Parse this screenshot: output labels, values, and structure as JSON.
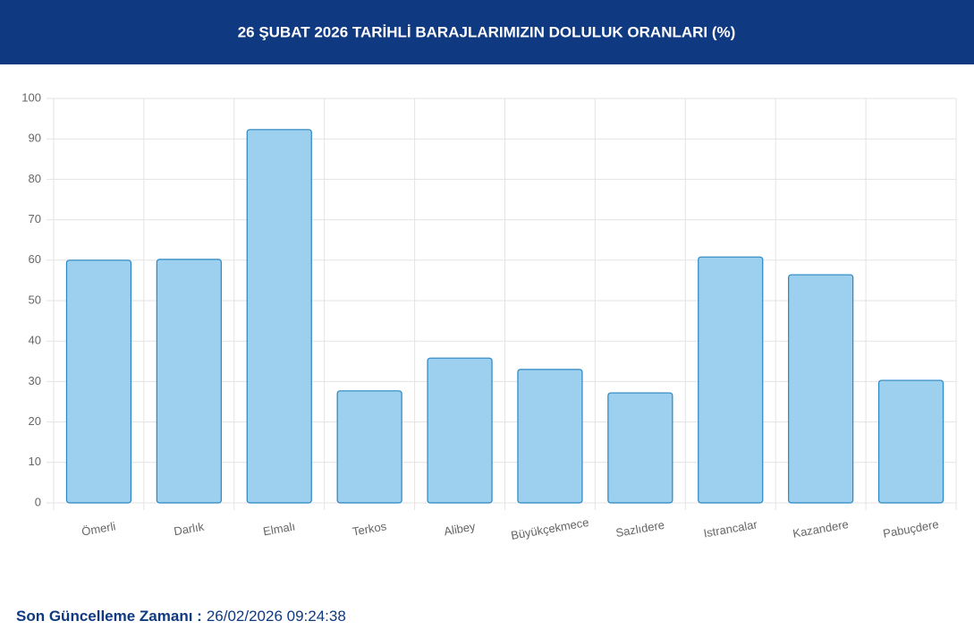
{
  "chart_data": {
    "type": "bar",
    "title": "26 ŞUBAT 2026 TARİHLİ BARAJLARIMIZIN DOLULUK ORANLARI (%)",
    "categories": [
      "Ömerli",
      "Darlık",
      "Elmalı",
      "Terkos",
      "Alibey",
      "Büyükçekmece",
      "Sazlıdere",
      "Istrancalar",
      "Kazandere",
      "Pabuçdere"
    ],
    "values": [
      60.0,
      60.2,
      92.3,
      27.7,
      35.8,
      33.0,
      27.2,
      60.8,
      56.4,
      30.3
    ],
    "color": "#9dd0ee",
    "border_color": "#2a86c0",
    "ylim": [
      0,
      100
    ],
    "yticks": [
      0,
      10,
      20,
      30,
      40,
      50,
      60,
      70,
      80,
      90,
      100
    ],
    "grid": true
  },
  "footer": {
    "label": "Son Güncelleme Zamanı :",
    "value": "26/02/2026 09:24:38"
  }
}
